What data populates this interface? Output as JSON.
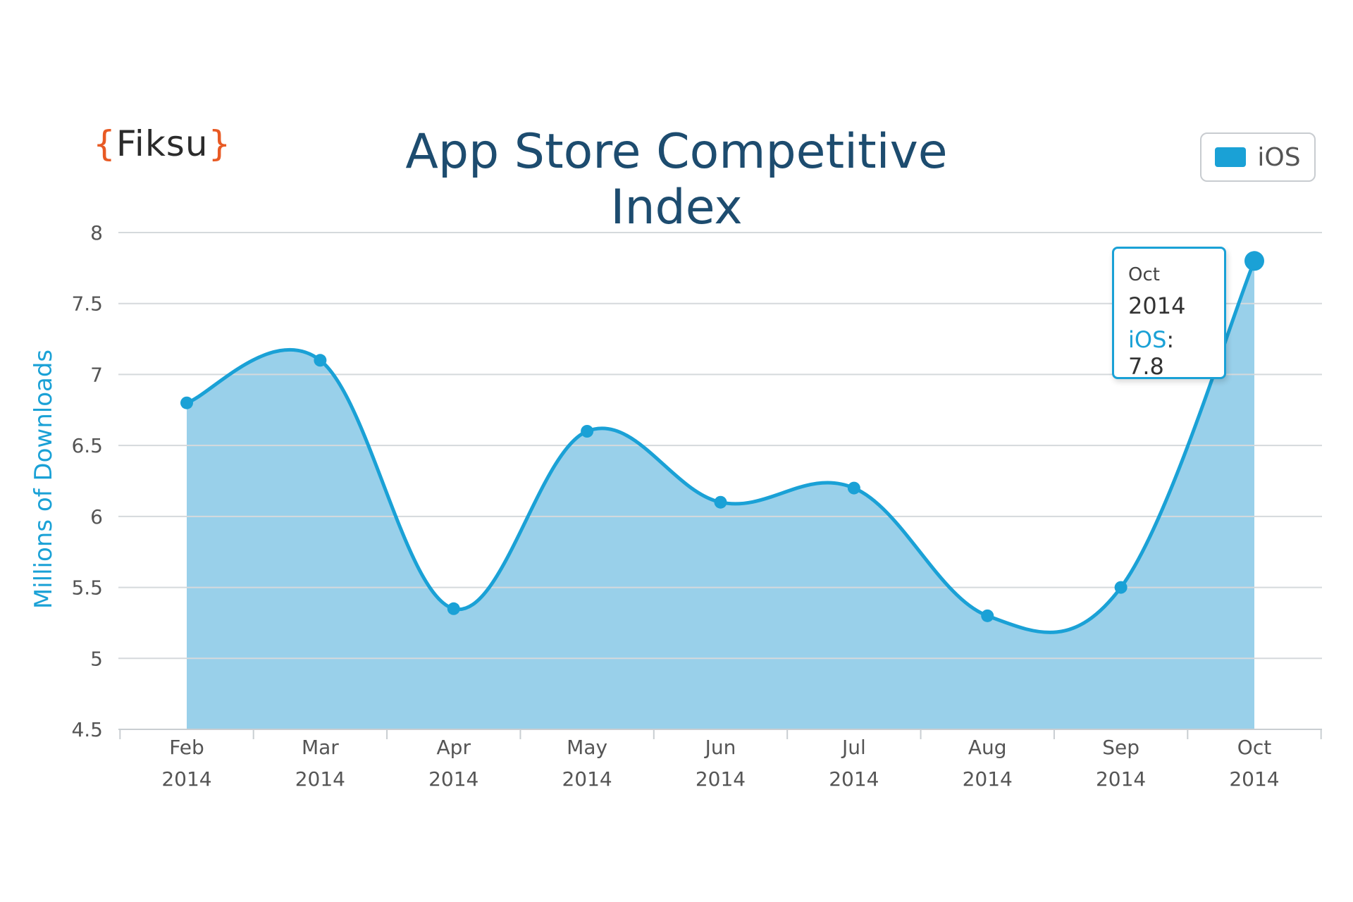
{
  "logo": {
    "open": "{",
    "text": "Fiksu",
    "close": "}"
  },
  "chart_data": {
    "type": "area",
    "title": "App Store Competitive Index",
    "ylabel": "Millions of Downloads",
    "xlabel": "",
    "categories": [
      "Feb 2014",
      "Mar 2014",
      "Apr 2014",
      "May 2014",
      "Jun 2014",
      "Jul 2014",
      "Aug 2014",
      "Sep 2014",
      "Oct 2014"
    ],
    "x_ticks": [
      {
        "month": "Feb",
        "year": "2014"
      },
      {
        "month": "Mar",
        "year": "2014"
      },
      {
        "month": "Apr",
        "year": "2014"
      },
      {
        "month": "May",
        "year": "2014"
      },
      {
        "month": "Jun",
        "year": "2014"
      },
      {
        "month": "Jul",
        "year": "2014"
      },
      {
        "month": "Aug",
        "year": "2014"
      },
      {
        "month": "Sep",
        "year": "2014"
      },
      {
        "month": "Oct",
        "year": "2014"
      }
    ],
    "y_ticks": [
      "4.5",
      "5",
      "5.5",
      "6",
      "6.5",
      "7",
      "7.5",
      "8"
    ],
    "ylim": [
      4.5,
      8
    ],
    "grid": true,
    "legend": "top-right",
    "series": [
      {
        "name": "iOS",
        "color": "#1aa1d6",
        "fill": "#99d0ea",
        "values": [
          6.8,
          7.1,
          5.35,
          6.6,
          6.1,
          6.2,
          5.3,
          5.5,
          7.8
        ]
      }
    ],
    "tooltip": {
      "month": "Oct",
      "year": "2014",
      "series": "iOS",
      "value": "7.8"
    }
  }
}
